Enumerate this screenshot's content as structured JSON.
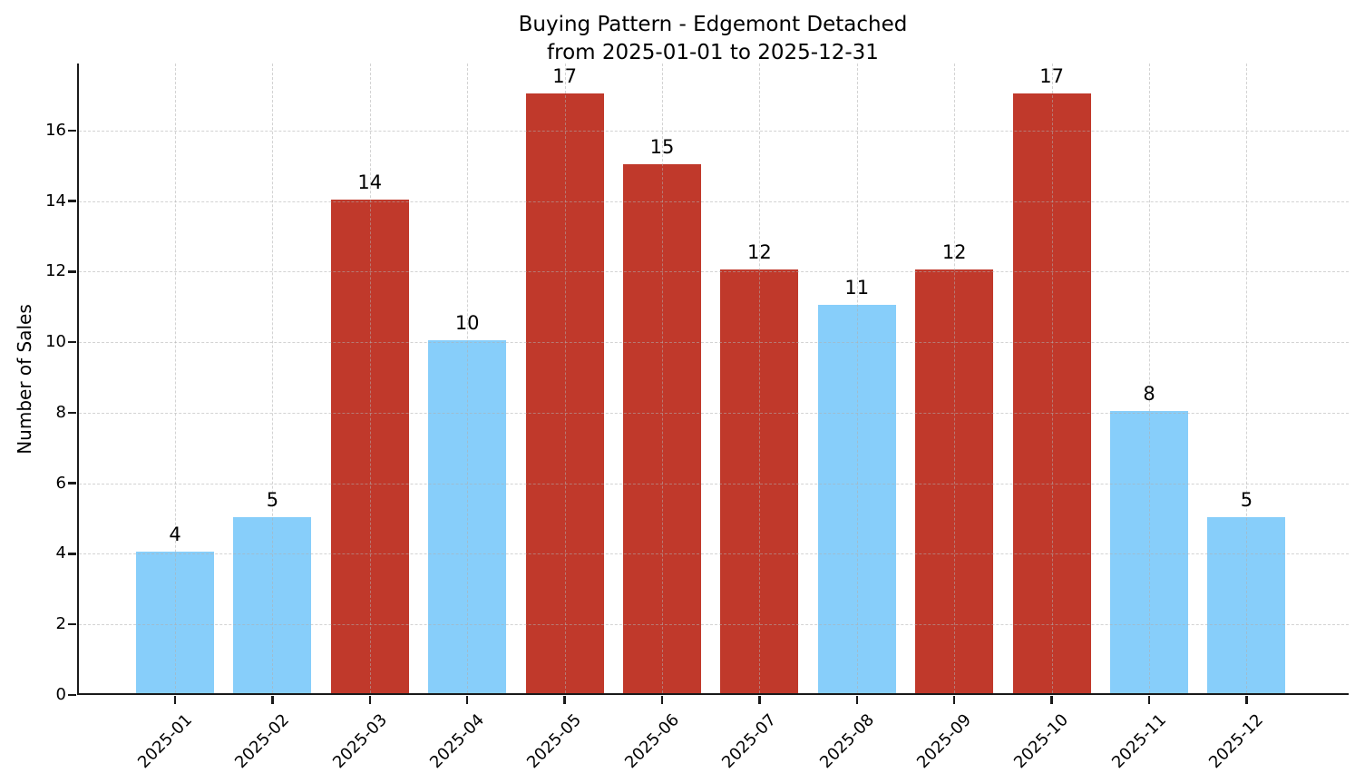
{
  "chart_data": {
    "type": "bar",
    "title": "Buying Pattern - Edgemont Detached",
    "subtitle": "from 2025-01-01 to 2025-12-31",
    "xlabel": "",
    "ylabel": "Number of Sales",
    "categories": [
      "2025-01",
      "2025-02",
      "2025-03",
      "2025-04",
      "2025-05",
      "2025-06",
      "2025-07",
      "2025-08",
      "2025-09",
      "2025-10",
      "2025-11",
      "2025-12"
    ],
    "values": [
      4,
      5,
      14,
      10,
      17,
      15,
      12,
      11,
      12,
      17,
      8,
      5
    ],
    "bar_colors": [
      "#87CEFA",
      "#87CEFA",
      "#C0392B",
      "#87CEFA",
      "#C0392B",
      "#C0392B",
      "#C0392B",
      "#87CEFA",
      "#C0392B",
      "#C0392B",
      "#87CEFA",
      "#87CEFA"
    ],
    "yticks": [
      0,
      2,
      4,
      6,
      8,
      10,
      12,
      14,
      16
    ],
    "ylim": [
      0,
      17.9
    ],
    "grid": true,
    "grid_style": "dashed",
    "x_tick_rotation": 45,
    "value_labels_shown": true,
    "legend_position": "none"
  },
  "colors": {
    "bar_blue": "#87CEFA",
    "bar_red": "#C0392B",
    "axis": "#1a1a1a",
    "grid": "#afafaf",
    "text": "#000000",
    "background": "#ffffff"
  }
}
